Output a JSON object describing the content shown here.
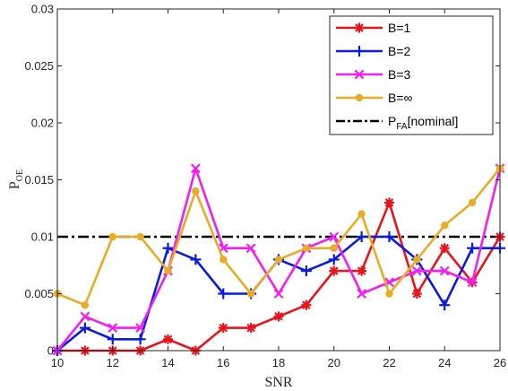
{
  "chart_data": {
    "type": "line",
    "xlabel": "SNR",
    "ylabel": "P",
    "ylabel_sub": "OE",
    "xlim": [
      10,
      26
    ],
    "ylim": [
      0,
      0.03
    ],
    "xticks": [
      10,
      12,
      14,
      16,
      18,
      20,
      22,
      24,
      26
    ],
    "yticks": [
      0,
      0.005,
      0.01,
      0.015,
      0.02,
      0.025,
      0.03
    ],
    "ytick_labels": [
      "0",
      "0.005",
      "0.01",
      "0.015",
      "0.02",
      "0.025",
      "0.03"
    ],
    "grid": false,
    "legend_position": "top-right",
    "x": [
      10,
      11,
      12,
      13,
      14,
      15,
      16,
      17,
      18,
      19,
      20,
      21,
      22,
      23,
      24,
      25,
      26
    ],
    "series": [
      {
        "name": "B=1",
        "color": "#e8141c",
        "marker": "asterisk",
        "values": [
          0,
          0,
          0,
          0,
          0.001,
          0,
          0.002,
          0.002,
          0.003,
          0.004,
          0.007,
          0.007,
          0.013,
          0.005,
          0.009,
          0.006,
          0.01
        ]
      },
      {
        "name": "B=2",
        "color": "#0a1ce0",
        "marker": "plus",
        "values": [
          0,
          0.002,
          0.001,
          0.001,
          0.009,
          0.008,
          0.005,
          0.005,
          0.008,
          0.007,
          0.008,
          0.01,
          0.01,
          0.008,
          0.004,
          0.009,
          0.009
        ]
      },
      {
        "name": "B=3",
        "color": "#f21ef2",
        "marker": "x",
        "values": [
          0,
          0.003,
          0.002,
          0.002,
          0.007,
          0.016,
          0.009,
          0.009,
          0.005,
          0.009,
          0.01,
          0.005,
          0.006,
          0.007,
          0.007,
          0.006,
          0.016
        ]
      },
      {
        "name": "B=∞",
        "color": "#e8ac26",
        "marker": "circle",
        "values": [
          0.005,
          0.004,
          0.01,
          0.01,
          0.007,
          0.014,
          0.008,
          0.005,
          0.008,
          0.009,
          0.009,
          0.012,
          0.005,
          0.008,
          0.011,
          0.013,
          0.016
        ]
      }
    ],
    "reference_line": {
      "label_main": "P",
      "label_sub": "FA",
      "label_rest": "[nominal]",
      "value": 0.01,
      "color": "#000000",
      "style": "dash-dot"
    }
  }
}
